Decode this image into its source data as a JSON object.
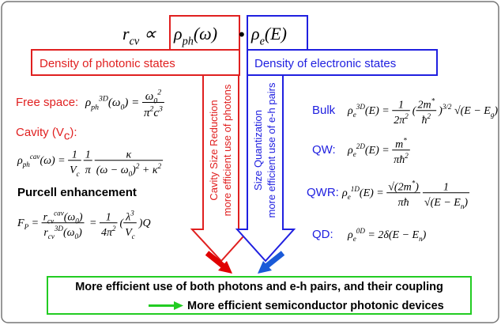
{
  "header": {
    "left": [
      {
        "text": "r"
      },
      {
        "text": "cv",
        "pos": "sub"
      },
      {
        "text": " ∝ "
      }
    ],
    "photonic": [
      {
        "text": "ρ"
      },
      {
        "text": "ph",
        "pos": "sub"
      },
      {
        "text": "(ω)"
      }
    ],
    "dot": "•",
    "electronic": [
      {
        "text": "ρ"
      },
      {
        "text": "e",
        "pos": "sub"
      },
      {
        "text": "(E)"
      }
    ]
  },
  "photonic": {
    "banner": "Density of photonic states",
    "arrow_lines": [
      "Cavity Size  Reduction",
      "more efficient use of photons"
    ],
    "free_space": {
      "label": "Free space:",
      "formula": [
        {
          "text": "ρ"
        },
        {
          "text": "ph",
          "pos": "sub"
        },
        {
          "text": "3D",
          "pos": "sup"
        },
        {
          "text": "(ω"
        },
        {
          "text": "0",
          "pos": "sub"
        },
        {
          "text": ") = "
        },
        {
          "num": [
            {
              "text": "ω"
            },
            {
              "text": "0",
              "pos": "sub"
            },
            {
              "text": "2",
              "pos": "sup"
            }
          ],
          "den": [
            {
              "text": "π"
            },
            {
              "text": "2",
              "pos": "sup"
            },
            {
              "text": "c"
            },
            {
              "text": "3",
              "pos": "sup"
            }
          ]
        }
      ]
    },
    "cavity": {
      "label": [
        {
          "text": "Cavity (V"
        },
        {
          "text": "c",
          "pos": "sub"
        },
        {
          "text": "):"
        }
      ],
      "formula": [
        {
          "text": "ρ"
        },
        {
          "text": "ph",
          "pos": "sub"
        },
        {
          "text": "cav",
          "pos": "sup"
        },
        {
          "text": "(ω) = "
        },
        {
          "num": [
            {
              "text": "1"
            }
          ],
          "den": [
            {
              "text": "V"
            },
            {
              "text": "c",
              "pos": "sub"
            }
          ]
        },
        {
          "num": [
            {
              "text": "1"
            }
          ],
          "den": [
            {
              "text": "π"
            }
          ]
        },
        {
          "num": [
            {
              "text": "κ"
            }
          ],
          "den": [
            {
              "text": "(ω − ω"
            },
            {
              "text": "0",
              "pos": "sub"
            },
            {
              "text": ")"
            },
            {
              "text": "2",
              "pos": "sup"
            },
            {
              "text": " + κ"
            },
            {
              "text": "2",
              "pos": "sup"
            }
          ]
        }
      ]
    },
    "purcell": {
      "label": "Purcell enhancement",
      "formula": [
        {
          "text": "F"
        },
        {
          "text": "P",
          "pos": "sub"
        },
        {
          "text": " = "
        },
        {
          "num": [
            {
              "text": "r"
            },
            {
              "text": "cv",
              "pos": "sub"
            },
            {
              "text": "cav",
              "pos": "sup"
            },
            {
              "text": "(ω"
            },
            {
              "text": "0",
              "pos": "sub"
            },
            {
              "text": ")"
            }
          ],
          "den": [
            {
              "text": "r"
            },
            {
              "text": "cv",
              "pos": "sub"
            },
            {
              "text": "3D",
              "pos": "sup"
            },
            {
              "text": "(ω"
            },
            {
              "text": "0",
              "pos": "sub"
            },
            {
              "text": ")"
            }
          ]
        },
        {
          "text": " = "
        },
        {
          "num": [
            {
              "text": "1"
            }
          ],
          "den": [
            {
              "text": "4π"
            },
            {
              "text": "2",
              "pos": "sup"
            }
          ]
        },
        {
          "text": "("
        },
        {
          "num": [
            {
              "text": "λ"
            },
            {
              "text": "3",
              "pos": "sup"
            }
          ],
          "den": [
            {
              "text": "V"
            },
            {
              "text": "c",
              "pos": "sub"
            }
          ]
        },
        {
          "text": ")Q"
        }
      ]
    }
  },
  "electronic": {
    "banner": "Density of electronic states",
    "arrow_lines": [
      "Size Quantization",
      "more efficient use of e-h pairs"
    ],
    "bulk": {
      "label": "Bulk",
      "formula": [
        {
          "text": "ρ"
        },
        {
          "text": "e",
          "pos": "sub"
        },
        {
          "text": "3D",
          "pos": "sup"
        },
        {
          "text": "(E) = "
        },
        {
          "num": [
            {
              "text": "1"
            }
          ],
          "den": [
            {
              "text": "2π"
            },
            {
              "text": "2",
              "pos": "sup"
            }
          ]
        },
        {
          "text": "("
        },
        {
          "num": [
            {
              "text": "2m"
            },
            {
              "text": "*",
              "pos": "sup"
            }
          ],
          "den": [
            {
              "text": "ħ"
            },
            {
              "text": "2",
              "pos": "sup"
            }
          ]
        },
        {
          "text": ")"
        },
        {
          "text": "3/2",
          "pos": "sup"
        },
        {
          "text": " √(E − E"
        },
        {
          "text": "g",
          "pos": "sub"
        },
        {
          "text": ")"
        }
      ]
    },
    "qw": {
      "label": "QW:",
      "formula": [
        {
          "text": "ρ"
        },
        {
          "text": "e",
          "pos": "sub"
        },
        {
          "text": "2D",
          "pos": "sup"
        },
        {
          "text": "(E) = "
        },
        {
          "num": [
            {
              "text": "m"
            },
            {
              "text": "*",
              "pos": "sup"
            }
          ],
          "den": [
            {
              "text": "πħ"
            },
            {
              "text": "2",
              "pos": "sup"
            }
          ]
        }
      ]
    },
    "qwr": {
      "label": "QWR:",
      "formula": [
        {
          "text": "ρ"
        },
        {
          "text": "e",
          "pos": "sub"
        },
        {
          "text": "1D",
          "pos": "sup"
        },
        {
          "text": "(E) = "
        },
        {
          "num": [
            {
              "text": "√(2m"
            },
            {
              "text": "*",
              "pos": "sup"
            },
            {
              "text": ")"
            }
          ],
          "den": [
            {
              "text": "πħ"
            }
          ]
        },
        {
          "num": [
            {
              "text": "1"
            }
          ],
          "den": [
            {
              "text": "√(E − E"
            },
            {
              "text": "n",
              "pos": "sub"
            },
            {
              "text": ")"
            }
          ]
        }
      ]
    },
    "qd": {
      "label": "QD:",
      "formula": [
        {
          "text": "ρ"
        },
        {
          "text": "e",
          "pos": "sub"
        },
        {
          "text": "0D",
          "pos": "sup"
        },
        {
          "text": " = 2δ(E − E"
        },
        {
          "text": "n",
          "pos": "sub"
        },
        {
          "text": ")"
        }
      ]
    }
  },
  "conclusion": {
    "line1": "More efficient use of both photons and e-h pairs, and their coupling",
    "line2": "More efficient semiconductor photonic devices"
  }
}
